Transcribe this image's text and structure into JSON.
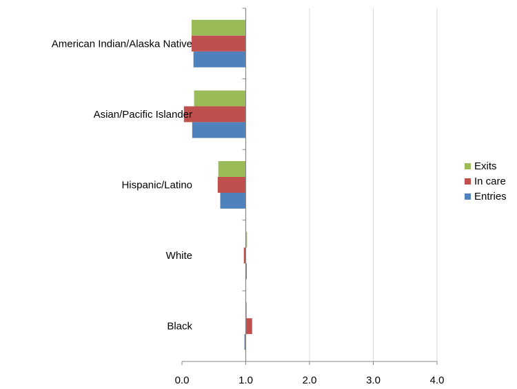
{
  "chart_data": {
    "type": "bar",
    "orientation": "horizontal",
    "categories": [
      "American Indian/Alaska Native",
      "Asian/Pacific Islander",
      "Hispanic/Latino",
      "White",
      "Black"
    ],
    "series": [
      {
        "name": "Exits",
        "color": "#9BBB59",
        "values": [
          0.15,
          0.19,
          0.57,
          1.02,
          1.0
        ]
      },
      {
        "name": "In care",
        "color": "#C0504D",
        "values": [
          0.15,
          0.03,
          0.56,
          0.97,
          1.1
        ]
      },
      {
        "name": "Entries",
        "color": "#4F81BD",
        "values": [
          0.18,
          0.16,
          0.6,
          1.0,
          0.98
        ]
      }
    ],
    "xlim": [
      0,
      4.0
    ],
    "xticks": [
      "0.0",
      "1.0",
      "2.0",
      "3.0",
      "4.0"
    ],
    "baseline": 1.0,
    "grid": true,
    "legend_position": "right",
    "legend_order": [
      "Exits",
      "In care",
      "Entries"
    ],
    "axis_color": "#868686",
    "grid_color": "#D9D9D9"
  }
}
